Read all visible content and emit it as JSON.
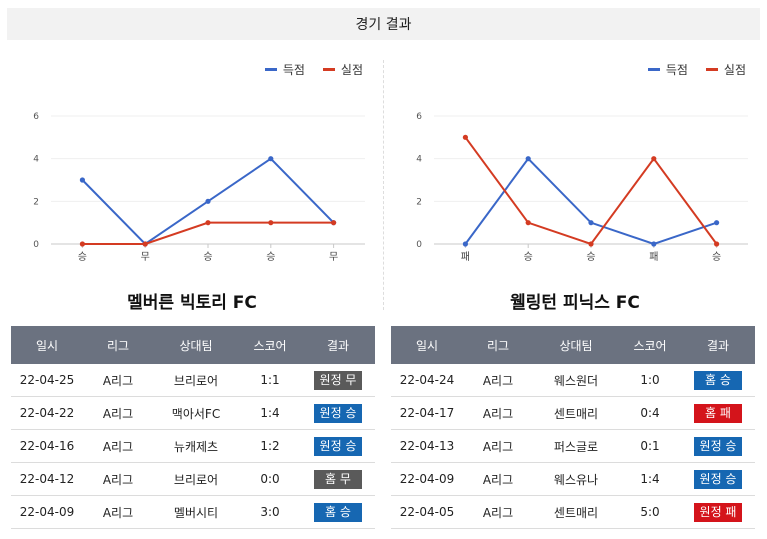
{
  "header": {
    "title": "경기 결과"
  },
  "legend": {
    "scored": "득점",
    "conceded": "실점"
  },
  "colors": {
    "scored": "#3a67c8",
    "conceded": "#d43b22",
    "win": "#1667b2",
    "draw": "#5a5a5a",
    "loss": "#d4141b"
  },
  "chart_data": [
    {
      "type": "line",
      "categories": [
        "승",
        "무",
        "승",
        "승",
        "무"
      ],
      "ylim": [
        0,
        6
      ],
      "yticks": [
        0,
        2,
        4,
        6
      ],
      "series": [
        {
          "name": "득점",
          "values": [
            3,
            0,
            2,
            4,
            1
          ]
        },
        {
          "name": "실점",
          "values": [
            0,
            0,
            1,
            1,
            1
          ]
        }
      ]
    },
    {
      "type": "line",
      "categories": [
        "패",
        "승",
        "승",
        "패",
        "승"
      ],
      "ylim": [
        0,
        6
      ],
      "yticks": [
        0,
        2,
        4,
        6
      ],
      "series": [
        {
          "name": "득점",
          "values": [
            0,
            4,
            1,
            0,
            1
          ]
        },
        {
          "name": "실점",
          "values": [
            5,
            1,
            0,
            4,
            0
          ]
        }
      ]
    }
  ],
  "teams": [
    {
      "name": "멜버른 빅토리 FC",
      "columns": [
        "일시",
        "리그",
        "상대팀",
        "스코어",
        "결과"
      ],
      "rows": [
        {
          "date": "22-04-25",
          "league": "A리그",
          "opponent": "브리로어",
          "score": "1:1",
          "result": "원정 무",
          "kind": "draw"
        },
        {
          "date": "22-04-22",
          "league": "A리그",
          "opponent": "맥아서FC",
          "score": "1:4",
          "result": "원정 승",
          "kind": "win"
        },
        {
          "date": "22-04-16",
          "league": "A리그",
          "opponent": "뉴캐제츠",
          "score": "1:2",
          "result": "원정 승",
          "kind": "win"
        },
        {
          "date": "22-04-12",
          "league": "A리그",
          "opponent": "브리로어",
          "score": "0:0",
          "result": "홈 무",
          "kind": "draw"
        },
        {
          "date": "22-04-09",
          "league": "A리그",
          "opponent": "멜버시티",
          "score": "3:0",
          "result": "홈 승",
          "kind": "win"
        }
      ]
    },
    {
      "name": "웰링턴 피닉스 FC",
      "columns": [
        "일시",
        "리그",
        "상대팀",
        "스코어",
        "결과"
      ],
      "rows": [
        {
          "date": "22-04-24",
          "league": "A리그",
          "opponent": "웨스원더",
          "score": "1:0",
          "result": "홈 승",
          "kind": "win"
        },
        {
          "date": "22-04-17",
          "league": "A리그",
          "opponent": "센트매리",
          "score": "0:4",
          "result": "홈 패",
          "kind": "loss"
        },
        {
          "date": "22-04-13",
          "league": "A리그",
          "opponent": "퍼스글로",
          "score": "0:1",
          "result": "원정 승",
          "kind": "win"
        },
        {
          "date": "22-04-09",
          "league": "A리그",
          "opponent": "웨스유나",
          "score": "1:4",
          "result": "원정 승",
          "kind": "win"
        },
        {
          "date": "22-04-05",
          "league": "A리그",
          "opponent": "센트매리",
          "score": "5:0",
          "result": "원정 패",
          "kind": "loss"
        }
      ]
    }
  ]
}
